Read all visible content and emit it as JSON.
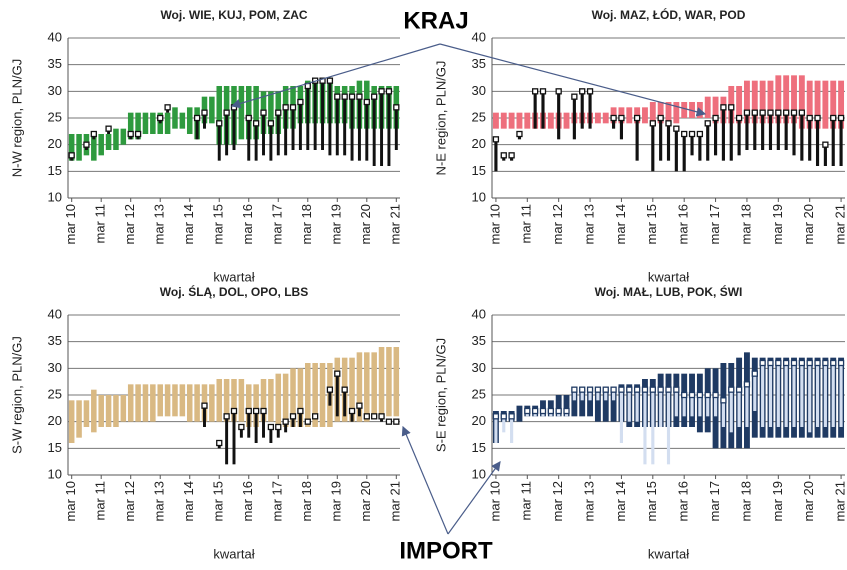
{
  "annotations": [
    "KRAJ",
    "IMPORT"
  ],
  "chart_data": [
    {
      "type": "range",
      "title": "Woj. WIE, KUJ, POM, ZAC",
      "xlabel": "kwartał",
      "ylabel": "N-W region, PLN/GJ",
      "categories": [
        "mar 10",
        null,
        null,
        null,
        "mar 11",
        null,
        null,
        null,
        "mar 12",
        null,
        null,
        null,
        "mar 13",
        null,
        null,
        null,
        "mar 14",
        null,
        null,
        null,
        "mar 15",
        null,
        null,
        null,
        "mar 16",
        null,
        null,
        null,
        "mar 17",
        null,
        null,
        null,
        "mar 18",
        null,
        null,
        null,
        "mar 19",
        null,
        null,
        null,
        "mar 20",
        null,
        null,
        null,
        "mar 21"
      ],
      "ylim": [
        10,
        40
      ],
      "yticks": [
        10,
        15,
        20,
        25,
        30,
        35,
        40
      ],
      "grid": true,
      "series": [
        {
          "color": "#2e9a3e",
          "low": [
            17,
            17,
            18,
            17,
            18,
            19,
            19,
            20,
            21,
            21,
            22,
            22,
            22,
            22,
            23,
            23,
            22,
            21,
            24,
            24,
            20,
            20,
            20,
            21,
            21,
            21,
            22,
            22,
            22,
            23,
            23,
            24,
            24,
            24,
            24,
            24,
            24,
            24,
            23,
            23,
            23,
            23,
            23,
            23,
            23
          ],
          "high": [
            22,
            22,
            22,
            22,
            22,
            22,
            23,
            23,
            26,
            26,
            26,
            26,
            26,
            26,
            27,
            26,
            27,
            27,
            29,
            29,
            31,
            31,
            31,
            31,
            31,
            31,
            30,
            30,
            30,
            31,
            31,
            31,
            32,
            32,
            32,
            32,
            31,
            31,
            31,
            32,
            32,
            31,
            31,
            31,
            31
          ]
        },
        {
          "color": "#111111",
          "marker": true,
          "low": [
            17,
            null,
            19,
            21,
            null,
            22,
            null,
            null,
            21,
            21,
            null,
            null,
            24,
            26,
            null,
            null,
            null,
            21,
            23,
            null,
            17,
            18,
            19,
            null,
            17,
            17,
            18,
            17,
            18,
            18,
            19,
            19,
            19,
            19,
            19,
            18,
            18,
            18,
            17,
            17,
            17,
            16,
            16,
            16,
            19
          ],
          "high": [
            18,
            null,
            20,
            22,
            null,
            23,
            null,
            null,
            22,
            22,
            null,
            null,
            25,
            27,
            null,
            null,
            null,
            25,
            26,
            null,
            24,
            26,
            27,
            null,
            25,
            24,
            26,
            24,
            26,
            27,
            27,
            28,
            31,
            32,
            32,
            32,
            29,
            29,
            29,
            29,
            28,
            29,
            30,
            30,
            27
          ]
        }
      ]
    },
    {
      "type": "range",
      "title": "Woj. MAZ, ŁÓD, WAR, POD",
      "xlabel": "kwartał",
      "ylabel": "N-E region, PLN/GJ",
      "categories": [
        "mar 10",
        null,
        null,
        null,
        "mar 11",
        null,
        null,
        null,
        "mar 12",
        null,
        null,
        null,
        "mar 13",
        null,
        null,
        null,
        "mar 14",
        null,
        null,
        null,
        "mar 15",
        null,
        null,
        null,
        "mar 16",
        null,
        null,
        null,
        "mar 17",
        null,
        null,
        null,
        "mar 18",
        null,
        null,
        null,
        "mar 19",
        null,
        null,
        null,
        "mar 20",
        null,
        null,
        null,
        "mar 21"
      ],
      "ylim": [
        10,
        40
      ],
      "yticks": [
        10,
        15,
        20,
        25,
        30,
        35,
        40
      ],
      "grid": true,
      "series": [
        {
          "color": "#ee6f7d",
          "low": [
            23,
            23,
            23,
            23,
            23,
            23,
            23,
            23,
            23,
            23,
            24,
            24,
            24,
            24,
            24,
            24,
            24,
            24,
            24,
            24,
            24,
            24,
            24,
            24,
            25,
            25,
            25,
            25,
            24,
            24,
            24,
            24,
            24,
            24,
            24,
            24,
            24,
            24,
            24,
            23,
            23,
            23,
            23,
            23,
            23
          ],
          "high": [
            26,
            26,
            26,
            26,
            26,
            26,
            26,
            26,
            26,
            26,
            26,
            26,
            26,
            26,
            26,
            27,
            27,
            27,
            27,
            27,
            28,
            28,
            28,
            28,
            28,
            28,
            28,
            29,
            29,
            29,
            31,
            31,
            32,
            32,
            32,
            32,
            33,
            33,
            33,
            33,
            32,
            32,
            32,
            32,
            32
          ]
        },
        {
          "color": "#111111",
          "marker": true,
          "low": [
            15,
            17,
            17,
            21,
            null,
            23,
            23,
            null,
            21,
            null,
            21,
            23,
            23,
            null,
            null,
            23,
            21,
            null,
            17,
            null,
            15,
            17,
            17,
            15,
            15,
            18,
            17,
            17,
            18,
            17,
            17,
            18,
            19,
            19,
            19,
            19,
            19,
            19,
            18,
            17,
            17,
            16,
            16,
            16,
            16
          ],
          "high": [
            21,
            18,
            18,
            22,
            null,
            30,
            30,
            null,
            30,
            null,
            29,
            30,
            30,
            null,
            null,
            25,
            25,
            null,
            25,
            null,
            24,
            25,
            24,
            23,
            22,
            22,
            22,
            24,
            25,
            27,
            27,
            25,
            26,
            26,
            26,
            26,
            26,
            26,
            26,
            26,
            25,
            25,
            20,
            25,
            25
          ]
        }
      ]
    },
    {
      "type": "range",
      "title": "Woj. ŚLĄ, DOL, OPO, LBS",
      "xlabel": "kwartał",
      "ylabel": "S-W region, PLN/GJ",
      "categories": [
        "mar 10",
        null,
        null,
        null,
        "mar 11",
        null,
        null,
        null,
        "mar 12",
        null,
        null,
        null,
        "mar 13",
        null,
        null,
        null,
        "mar 14",
        null,
        null,
        null,
        "mar 15",
        null,
        null,
        null,
        "mar 16",
        null,
        null,
        null,
        "mar 17",
        null,
        null,
        null,
        "mar 18",
        null,
        null,
        null,
        "mar 19",
        null,
        null,
        null,
        "mar 20",
        null,
        null,
        null,
        "mar 21"
      ],
      "ylim": [
        10,
        40
      ],
      "yticks": [
        10,
        15,
        20,
        25,
        30,
        35,
        40
      ],
      "grid": true,
      "series": [
        {
          "color": "#d9b983",
          "low": [
            16,
            17,
            19,
            18,
            19,
            19,
            19,
            20,
            20,
            20,
            20,
            20,
            21,
            21,
            21,
            21,
            20,
            20,
            20,
            20,
            20,
            20,
            20,
            20,
            19,
            19,
            20,
            20,
            19,
            19,
            19,
            19,
            19,
            19,
            19,
            19,
            20,
            20,
            20,
            20,
            20,
            21,
            21,
            21,
            21
          ],
          "high": [
            24,
            24,
            24,
            26,
            25,
            25,
            25,
            25,
            27,
            27,
            27,
            27,
            27,
            27,
            27,
            27,
            27,
            27,
            27,
            27,
            28,
            28,
            28,
            28,
            27,
            27,
            28,
            28,
            29,
            29,
            30,
            30,
            31,
            31,
            31,
            31,
            32,
            32,
            32,
            33,
            33,
            33,
            34,
            34,
            34
          ]
        },
        {
          "color": "#111111",
          "marker": true,
          "low": [
            null,
            null,
            null,
            null,
            null,
            null,
            null,
            null,
            null,
            null,
            null,
            null,
            null,
            null,
            null,
            null,
            null,
            null,
            19,
            null,
            15,
            12,
            12,
            17,
            17,
            16,
            17,
            16,
            17,
            18,
            19,
            19,
            20,
            21,
            null,
            23,
            21,
            21,
            20,
            21,
            21,
            21,
            20,
            20,
            20
          ],
          "high": [
            null,
            null,
            null,
            null,
            null,
            null,
            null,
            null,
            null,
            null,
            null,
            null,
            null,
            null,
            null,
            null,
            null,
            null,
            23,
            null,
            16,
            21,
            22,
            19,
            22,
            22,
            22,
            19,
            19,
            20,
            21,
            22,
            20,
            21,
            null,
            26,
            29,
            26,
            22,
            23,
            21,
            21,
            21,
            20,
            20
          ]
        }
      ]
    },
    {
      "type": "range",
      "title": "Woj. MAŁ, LUB, POK, ŚWI",
      "xlabel": "kwartał",
      "ylabel": "S-E region, PLN/GJ",
      "categories": [
        "mar 10",
        null,
        null,
        null,
        "mar 11",
        null,
        null,
        null,
        "mar 12",
        null,
        null,
        null,
        "mar 13",
        null,
        null,
        null,
        "mar 14",
        null,
        null,
        null,
        "mar 15",
        null,
        null,
        null,
        "mar 16",
        null,
        null,
        null,
        "mar 17",
        null,
        null,
        null,
        "mar 18",
        null,
        null,
        null,
        "mar 19",
        null,
        null,
        null,
        "mar 20",
        null,
        null,
        null,
        "mar 21"
      ],
      "ylim": [
        10,
        40
      ],
      "yticks": [
        10,
        15,
        20,
        25,
        30,
        35,
        40
      ],
      "grid": true,
      "series": [
        {
          "color": "#1f3a63",
          "low": [
            16,
            20,
            20,
            20,
            21,
            21,
            21,
            21,
            21,
            21,
            21,
            21,
            21,
            20,
            20,
            20,
            20,
            19,
            19,
            19,
            19,
            19,
            19,
            19,
            19,
            19,
            18,
            18,
            15,
            15,
            15,
            15,
            15,
            17,
            17,
            17,
            17,
            17,
            17,
            17,
            17,
            17,
            17,
            17,
            17
          ],
          "high": [
            22,
            22,
            22,
            23,
            23,
            23,
            24,
            24,
            25,
            25,
            26,
            26,
            26,
            26,
            26,
            26,
            27,
            27,
            27,
            28,
            28,
            29,
            29,
            29,
            29,
            29,
            29,
            30,
            30,
            31,
            31,
            32,
            33,
            32,
            32,
            32,
            32,
            32,
            32,
            32,
            32,
            32,
            32,
            32,
            32
          ]
        },
        {
          "color": "#d3def0",
          "marker": true,
          "low": [
            16,
            18,
            16,
            null,
            21,
            21,
            21,
            21,
            21,
            21,
            24,
            24,
            24,
            24,
            24,
            24,
            16,
            20,
            20,
            12,
            12,
            19,
            12,
            21,
            21,
            21,
            21,
            21,
            21,
            19,
            18,
            19,
            19,
            22,
            19,
            19,
            19,
            19,
            19,
            19,
            18,
            19,
            19,
            19,
            19
          ],
          "high": [
            21,
            21,
            21,
            null,
            22,
            22,
            22,
            22,
            22,
            22,
            26,
            26,
            26,
            26,
            26,
            26,
            26,
            26,
            26,
            26,
            26,
            26,
            26,
            26,
            25,
            25,
            25,
            25,
            25,
            24,
            26,
            26,
            27,
            29,
            31,
            31,
            31,
            31,
            31,
            31,
            31,
            31,
            31,
            31,
            31
          ]
        }
      ]
    }
  ]
}
